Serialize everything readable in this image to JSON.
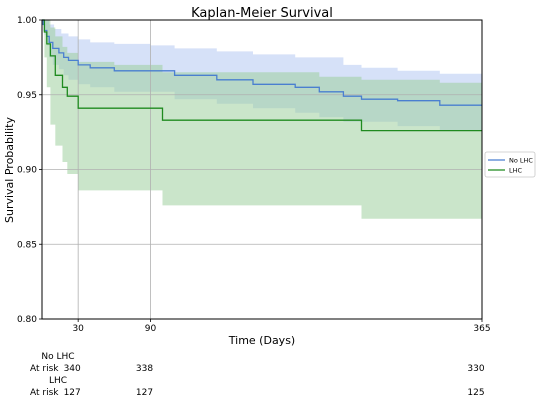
{
  "chart_data": {
    "type": "line",
    "title": "Kaplan-Meier Survival",
    "xlabel": "Time (Days)",
    "ylabel": "Survival Probability",
    "xlim": [
      0,
      365
    ],
    "ylim": [
      0.8,
      1.0
    ],
    "x_ticks": [
      30,
      90,
      365
    ],
    "y_ticks": [
      0.8,
      0.85,
      0.9,
      0.95,
      1.0
    ],
    "y_tick_labels": [
      "0.80",
      "0.85",
      "0.90",
      "0.95",
      "1.00"
    ],
    "grid": true,
    "legend_position": "right",
    "series": [
      {
        "name": "No LHC",
        "color": "#4a7fd0",
        "fill": "#b4c8f2",
        "steps": [
          [
            0,
            1.0
          ],
          [
            1,
            0.997
          ],
          [
            2,
            0.993
          ],
          [
            4,
            0.989
          ],
          [
            6,
            0.985
          ],
          [
            9,
            0.981
          ],
          [
            14,
            0.978
          ],
          [
            18,
            0.975
          ],
          [
            22,
            0.973
          ],
          [
            30,
            0.97
          ],
          [
            40,
            0.968
          ],
          [
            60,
            0.966
          ],
          [
            110,
            0.963
          ],
          [
            145,
            0.96
          ],
          [
            175,
            0.957
          ],
          [
            210,
            0.955
          ],
          [
            230,
            0.952
          ],
          [
            250,
            0.949
          ],
          [
            265,
            0.947
          ],
          [
            295,
            0.946
          ],
          [
            330,
            0.943
          ],
          [
            365,
            0.943
          ]
        ],
        "upper": [
          [
            0,
            1.0
          ],
          [
            2,
            1.0
          ],
          [
            6,
            0.997
          ],
          [
            10,
            0.994
          ],
          [
            16,
            0.991
          ],
          [
            22,
            0.989
          ],
          [
            30,
            0.987
          ],
          [
            40,
            0.985
          ],
          [
            60,
            0.984
          ],
          [
            90,
            0.983
          ],
          [
            110,
            0.981
          ],
          [
            145,
            0.979
          ],
          [
            175,
            0.977
          ],
          [
            210,
            0.975
          ],
          [
            250,
            0.97
          ],
          [
            265,
            0.968
          ],
          [
            295,
            0.966
          ],
          [
            330,
            0.964
          ],
          [
            365,
            0.964
          ]
        ],
        "lower": [
          [
            0,
            1.0
          ],
          [
            2,
            0.99
          ],
          [
            4,
            0.983
          ],
          [
            6,
            0.975
          ],
          [
            9,
            0.97
          ],
          [
            14,
            0.967
          ],
          [
            18,
            0.963
          ],
          [
            22,
            0.96
          ],
          [
            30,
            0.957
          ],
          [
            40,
            0.955
          ],
          [
            60,
            0.952
          ],
          [
            110,
            0.947
          ],
          [
            145,
            0.944
          ],
          [
            175,
            0.941
          ],
          [
            210,
            0.938
          ],
          [
            230,
            0.935
          ],
          [
            250,
            0.932
          ],
          [
            295,
            0.929
          ],
          [
            330,
            0.926
          ],
          [
            365,
            0.926
          ]
        ]
      },
      {
        "name": "LHC",
        "color": "#1f8a1f",
        "fill": "#9fd09f",
        "steps": [
          [
            0,
            1.0
          ],
          [
            2,
            0.992
          ],
          [
            4,
            0.984
          ],
          [
            7,
            0.976
          ],
          [
            11,
            0.963
          ],
          [
            17,
            0.955
          ],
          [
            21,
            0.949
          ],
          [
            30,
            0.941
          ],
          [
            100,
            0.933
          ],
          [
            265,
            0.926
          ],
          [
            365,
            0.926
          ]
        ],
        "upper": [
          [
            0,
            1.0
          ],
          [
            4,
            1.0
          ],
          [
            7,
            0.995
          ],
          [
            11,
            0.989
          ],
          [
            17,
            0.982
          ],
          [
            21,
            0.978
          ],
          [
            30,
            0.972
          ],
          [
            60,
            0.97
          ],
          [
            100,
            0.965
          ],
          [
            230,
            0.962
          ],
          [
            265,
            0.96
          ],
          [
            330,
            0.958
          ],
          [
            365,
            0.958
          ]
        ],
        "lower": [
          [
            0,
            1.0
          ],
          [
            2,
            0.975
          ],
          [
            4,
            0.955
          ],
          [
            7,
            0.93
          ],
          [
            11,
            0.916
          ],
          [
            17,
            0.905
          ],
          [
            21,
            0.897
          ],
          [
            30,
            0.886
          ],
          [
            100,
            0.876
          ],
          [
            265,
            0.867
          ],
          [
            365,
            0.867
          ]
        ]
      }
    ],
    "at_risk_table": {
      "groups": [
        {
          "name": "No LHC",
          "label": "At risk",
          "times": [
            30,
            90,
            365
          ],
          "values": [
            "340",
            "338",
            "330"
          ]
        },
        {
          "name": "LHC",
          "label": "At risk",
          "times": [
            30,
            90,
            365
          ],
          "values": [
            "127",
            "127",
            "125"
          ]
        }
      ]
    }
  }
}
